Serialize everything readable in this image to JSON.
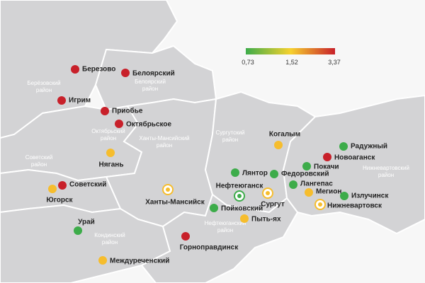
{
  "legend": {
    "labels": [
      "0,73",
      "1,52",
      "3,37"
    ],
    "colors": [
      "#3dac4a",
      "#f6d12e",
      "#c8202a"
    ]
  },
  "districts": [
    {
      "lines": [
        "Берёзовский",
        "район"
      ]
    },
    {
      "lines": [
        "Белоярский",
        "район"
      ]
    },
    {
      "lines": [
        "Октябрьский",
        "район"
      ]
    },
    {
      "lines": [
        "Ханты-Мансийский",
        "район"
      ]
    },
    {
      "lines": [
        "Советский",
        "район"
      ]
    },
    {
      "lines": [
        "Сургутский",
        "район"
      ]
    },
    {
      "lines": [
        "Кондинский",
        "район"
      ]
    },
    {
      "lines": [
        "Нефтеюганский",
        "район"
      ]
    },
    {
      "lines": [
        "Нижневартовский",
        "район"
      ]
    }
  ],
  "cities": [
    {
      "label": "Березово",
      "color": "#c8202a"
    },
    {
      "label": "Белоярский",
      "color": "#c8202a"
    },
    {
      "label": "Игрим",
      "color": "#c8202a"
    },
    {
      "label": "Приобье",
      "color": "#c8202a"
    },
    {
      "label": "Октябрьское",
      "color": "#c8202a"
    },
    {
      "label": "Нягань",
      "color": "#f6bd2d"
    },
    {
      "label": "Советский",
      "color": "#c8202a"
    },
    {
      "label": "Югорск",
      "color": "#f6bd2d"
    },
    {
      "label": "Ханты-Мансийск",
      "color": "#f6bd2d",
      "marker": "ring"
    },
    {
      "label": "Урай",
      "color": "#3dac4a"
    },
    {
      "label": "Междуреченский",
      "color": "#f6bd2d"
    },
    {
      "label": "Горноправдинск",
      "color": "#c8202a"
    },
    {
      "label": "Когалым",
      "color": "#f6bd2d"
    },
    {
      "label": "Радужный",
      "color": "#3dac4a"
    },
    {
      "label": "Новоаганск",
      "color": "#c8202a"
    },
    {
      "label": "Покачи",
      "color": "#3dac4a"
    },
    {
      "label": "Лянтор",
      "color": "#3dac4a"
    },
    {
      "label": "Федоровский",
      "color": "#3dac4a"
    },
    {
      "label": "Лангепас",
      "color": "#3dac4a"
    },
    {
      "label": "Нефтеюганск",
      "color": "#3dac4a",
      "marker": "ring"
    },
    {
      "label": "Сургут",
      "color": "#f6bd2d",
      "marker": "ring"
    },
    {
      "label": "Мегион",
      "color": "#f6bd2d"
    },
    {
      "label": "Излучинск",
      "color": "#3dac4a"
    },
    {
      "label": "Нижневартовск",
      "color": "#f6bd2d",
      "marker": "ring"
    },
    {
      "label": "Пойковский",
      "color": "#3dac4a"
    },
    {
      "label": "Пыть-ях",
      "color": "#f6bd2d"
    }
  ]
}
